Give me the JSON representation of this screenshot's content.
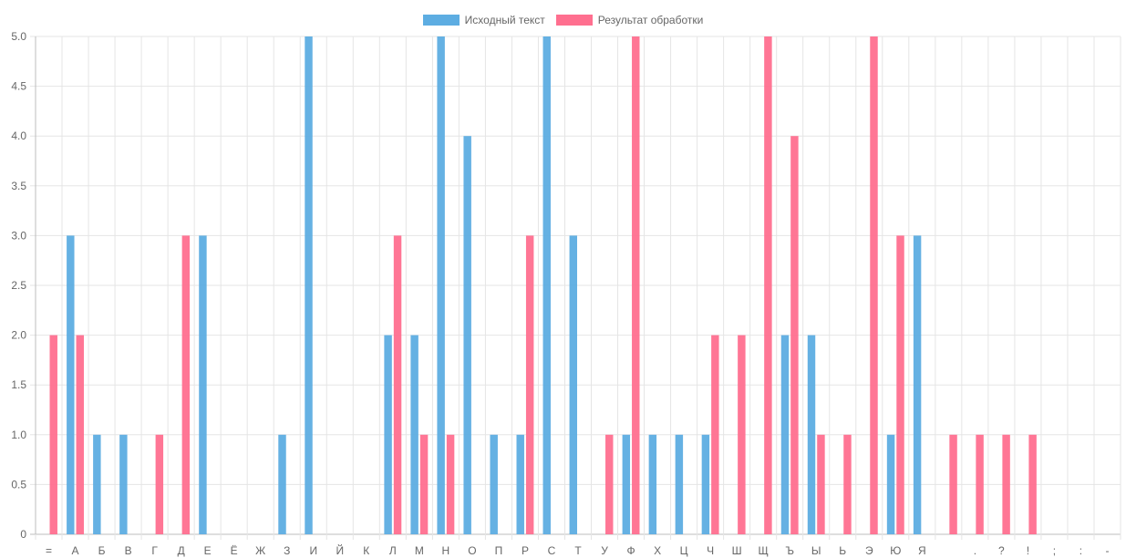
{
  "chart_data": {
    "type": "bar",
    "categories": [
      "=",
      "А",
      "Б",
      "В",
      "Г",
      "Д",
      "Е",
      "Ё",
      "Ж",
      "З",
      "И",
      "Й",
      "К",
      "Л",
      "М",
      "Н",
      "О",
      "П",
      "Р",
      "С",
      "Т",
      "У",
      "Ф",
      "Х",
      "Ц",
      "Ч",
      "Ш",
      "Щ",
      "Ъ",
      "Ы",
      "Ь",
      "Э",
      "Ю",
      "Я",
      " ",
      ".",
      "?",
      "!",
      ";",
      ":",
      "-"
    ],
    "series": [
      {
        "name": "Исходный текст",
        "color": "#5DADE2",
        "values": [
          0,
          3,
          1,
          1,
          0,
          0,
          3,
          0,
          0,
          1,
          5,
          0,
          0,
          2,
          2,
          5,
          4,
          1,
          1,
          5,
          3,
          0,
          1,
          1,
          1,
          1,
          0,
          0,
          2,
          2,
          0,
          0,
          1,
          3,
          0,
          0,
          0,
          0,
          0,
          0,
          0
        ]
      },
      {
        "name": "Результат обработки",
        "color": "#FF6F8F",
        "values": [
          2,
          2,
          0,
          0,
          1,
          3,
          0,
          0,
          0,
          0,
          0,
          0,
          0,
          3,
          1,
          1,
          0,
          0,
          3,
          0,
          0,
          1,
          5,
          0,
          0,
          2,
          2,
          5,
          4,
          1,
          1,
          5,
          3,
          0,
          1,
          1,
          1,
          1,
          0,
          0,
          0
        ]
      }
    ],
    "ylim": [
      0,
      5
    ],
    "yticks": [
      "0",
      "0.5",
      "1.0",
      "1.5",
      "2.0",
      "2.5",
      "3.0",
      "3.5",
      "4.0",
      "4.5",
      "5.0"
    ],
    "grid": true,
    "legend": "top-center"
  }
}
